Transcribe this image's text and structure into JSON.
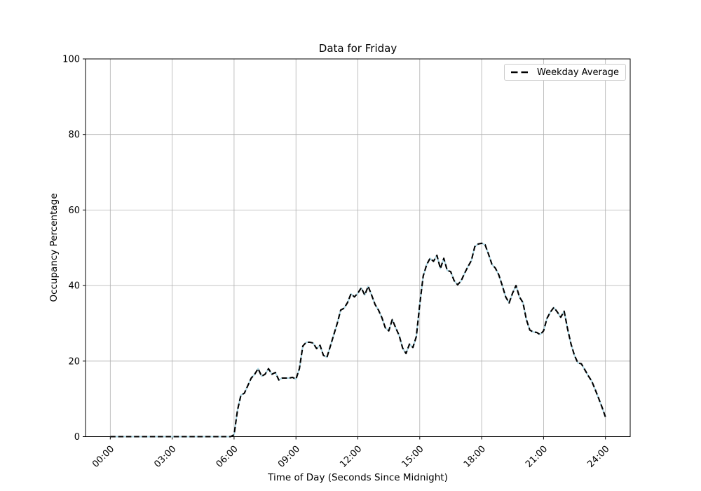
{
  "figure": {
    "background": "#ffffff"
  },
  "chart": {
    "title": "Data for Friday",
    "xlabel": "Time of Day (Seconds Since Midnight)",
    "ylabel": "Occupancy Percentage",
    "legend": {
      "label": "Weekday Average"
    },
    "colors": {
      "dashed_line": "#000000",
      "underlay_line": "#add8e6",
      "grid": "#b0b0b0",
      "spine": "#000000",
      "text": "#000000",
      "legend_border": "#cccccc",
      "legend_background": "#ffffff"
    }
  },
  "chart_data": {
    "type": "line",
    "title": "Data for Friday",
    "xlabel": "Time of Day (Seconds Since Midnight)",
    "ylabel": "Occupancy Percentage",
    "grid": true,
    "legend_position": "upper right",
    "ylim": [
      0,
      100
    ],
    "yticks": [
      0,
      20,
      40,
      60,
      80,
      100
    ],
    "xlim_seconds": [
      -4320,
      90720
    ],
    "xticks": [
      {
        "seconds": 0,
        "label": "00:00"
      },
      {
        "seconds": 10800,
        "label": "03:00"
      },
      {
        "seconds": 21600,
        "label": "06:00"
      },
      {
        "seconds": 32400,
        "label": "09:00"
      },
      {
        "seconds": 43200,
        "label": "12:00"
      },
      {
        "seconds": 54000,
        "label": "15:00"
      },
      {
        "seconds": 64800,
        "label": "18:00"
      },
      {
        "seconds": 75600,
        "label": "21:00"
      },
      {
        "seconds": 86400,
        "label": "24:00"
      }
    ],
    "series": [
      {
        "name": "Weekday Average",
        "line_style": "black dashed over solid lightblue underlay",
        "x_start_seconds": 0,
        "x_step_seconds": 600,
        "values": [
          0,
          0,
          0,
          0,
          0,
          0,
          0,
          0,
          0,
          0,
          0,
          0,
          0,
          0,
          0,
          0,
          0,
          0,
          0,
          0,
          0,
          0,
          0,
          0,
          0,
          0,
          0,
          0,
          0,
          0,
          0,
          0,
          0,
          0,
          0,
          0,
          0.5,
          7,
          11,
          11.5,
          13.5,
          15.5,
          16.5,
          18,
          16,
          16.5,
          18,
          16.5,
          17,
          15,
          15.5,
          15.5,
          15.5,
          15.7,
          15.2,
          18,
          24,
          25,
          25,
          24.8,
          23.3,
          24.2,
          21.5,
          21,
          24,
          27,
          30,
          33.5,
          34,
          35.5,
          37.8,
          37,
          38,
          39.4,
          37.5,
          39.8,
          37.5,
          35,
          33.5,
          31.5,
          28.8,
          28,
          31,
          28.8,
          26.8,
          23.5,
          22,
          24.5,
          23.6,
          26.5,
          35,
          42.5,
          45.5,
          47.2,
          46.4,
          48,
          44.5,
          47.2,
          44,
          43.7,
          41.3,
          40.2,
          41.2,
          43.2,
          45,
          46.6,
          50.3,
          51,
          51.2,
          50.8,
          48.3,
          45.6,
          44.6,
          42.8,
          40,
          37,
          35.4,
          38,
          40,
          37,
          35.5,
          31,
          28.2,
          27.7,
          27.6,
          27,
          28,
          31.3,
          33,
          34.2,
          33,
          31.6,
          33.2,
          28.5,
          24.5,
          21.5,
          19.5,
          19.3,
          17.7,
          16.1,
          14.7,
          12.5,
          10.2,
          7.8,
          5.2
        ]
      }
    ]
  }
}
